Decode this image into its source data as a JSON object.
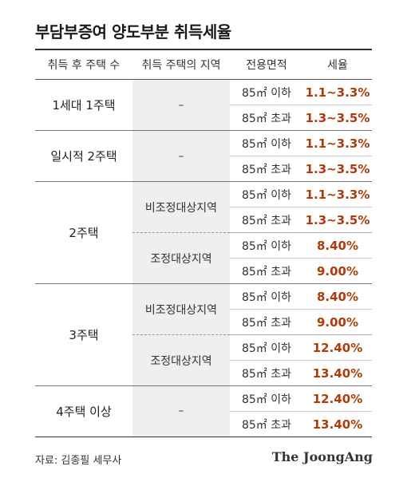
{
  "title": "부담부증여 양도부분 취득세율",
  "headers": [
    "취득 후 주택 수",
    "취득 주택의 지역",
    "전용면적",
    "세율"
  ],
  "groups": [
    {
      "category": "1세대 1주택",
      "region": "–",
      "rows": [
        {
          "area": "85㎡ 이하",
          "rate": "1.1~3.3%"
        },
        {
          "area": "85㎡ 초과",
          "rate": "1.3~3.5%"
        }
      ]
    },
    {
      "category": "일시적 2주택",
      "region": "–",
      "rows": [
        {
          "area": "85㎡ 이하",
          "rate": "1.1~3.3%"
        },
        {
          "area": "85㎡ 초과",
          "rate": "1.3~3.5%"
        }
      ]
    },
    {
      "category": "2주택",
      "regions": [
        {
          "name": "비조정대상지역",
          "rows": [
            {
              "area": "85㎡ 이하",
              "rate": "1.1~3.3%"
            },
            {
              "area": "85㎡ 초과",
              "rate": "1.3~3.5%"
            }
          ]
        },
        {
          "name": "조정대상지역",
          "rows": [
            {
              "area": "85㎡ 이하",
              "rate": "8.40%"
            },
            {
              "area": "85㎡ 초과",
              "rate": "9.00%"
            }
          ]
        }
      ]
    },
    {
      "category": "3주택",
      "regions": [
        {
          "name": "비조정대상지역",
          "rows": [
            {
              "area": "85㎡ 이하",
              "rate": "8.40%"
            },
            {
              "area": "85㎡ 초과",
              "rate": "9.00%"
            }
          ]
        },
        {
          "name": "조정대상지역",
          "rows": [
            {
              "area": "85㎡ 이하",
              "rate": "12.40%"
            },
            {
              "area": "85㎡ 초과",
              "rate": "13.40%"
            }
          ]
        }
      ]
    },
    {
      "category": "4주택 이상",
      "region": "–",
      "rows": [
        {
          "area": "85㎡ 이하",
          "rate": "12.40%"
        },
        {
          "area": "85㎡ 초과",
          "rate": "13.40%"
        }
      ]
    }
  ],
  "source": "자료: 김종필 세무사",
  "brand": "The JoongAng",
  "colors": {
    "rate": "#b03a0b",
    "region_bg": "#efefef",
    "rule": "#333333"
  }
}
